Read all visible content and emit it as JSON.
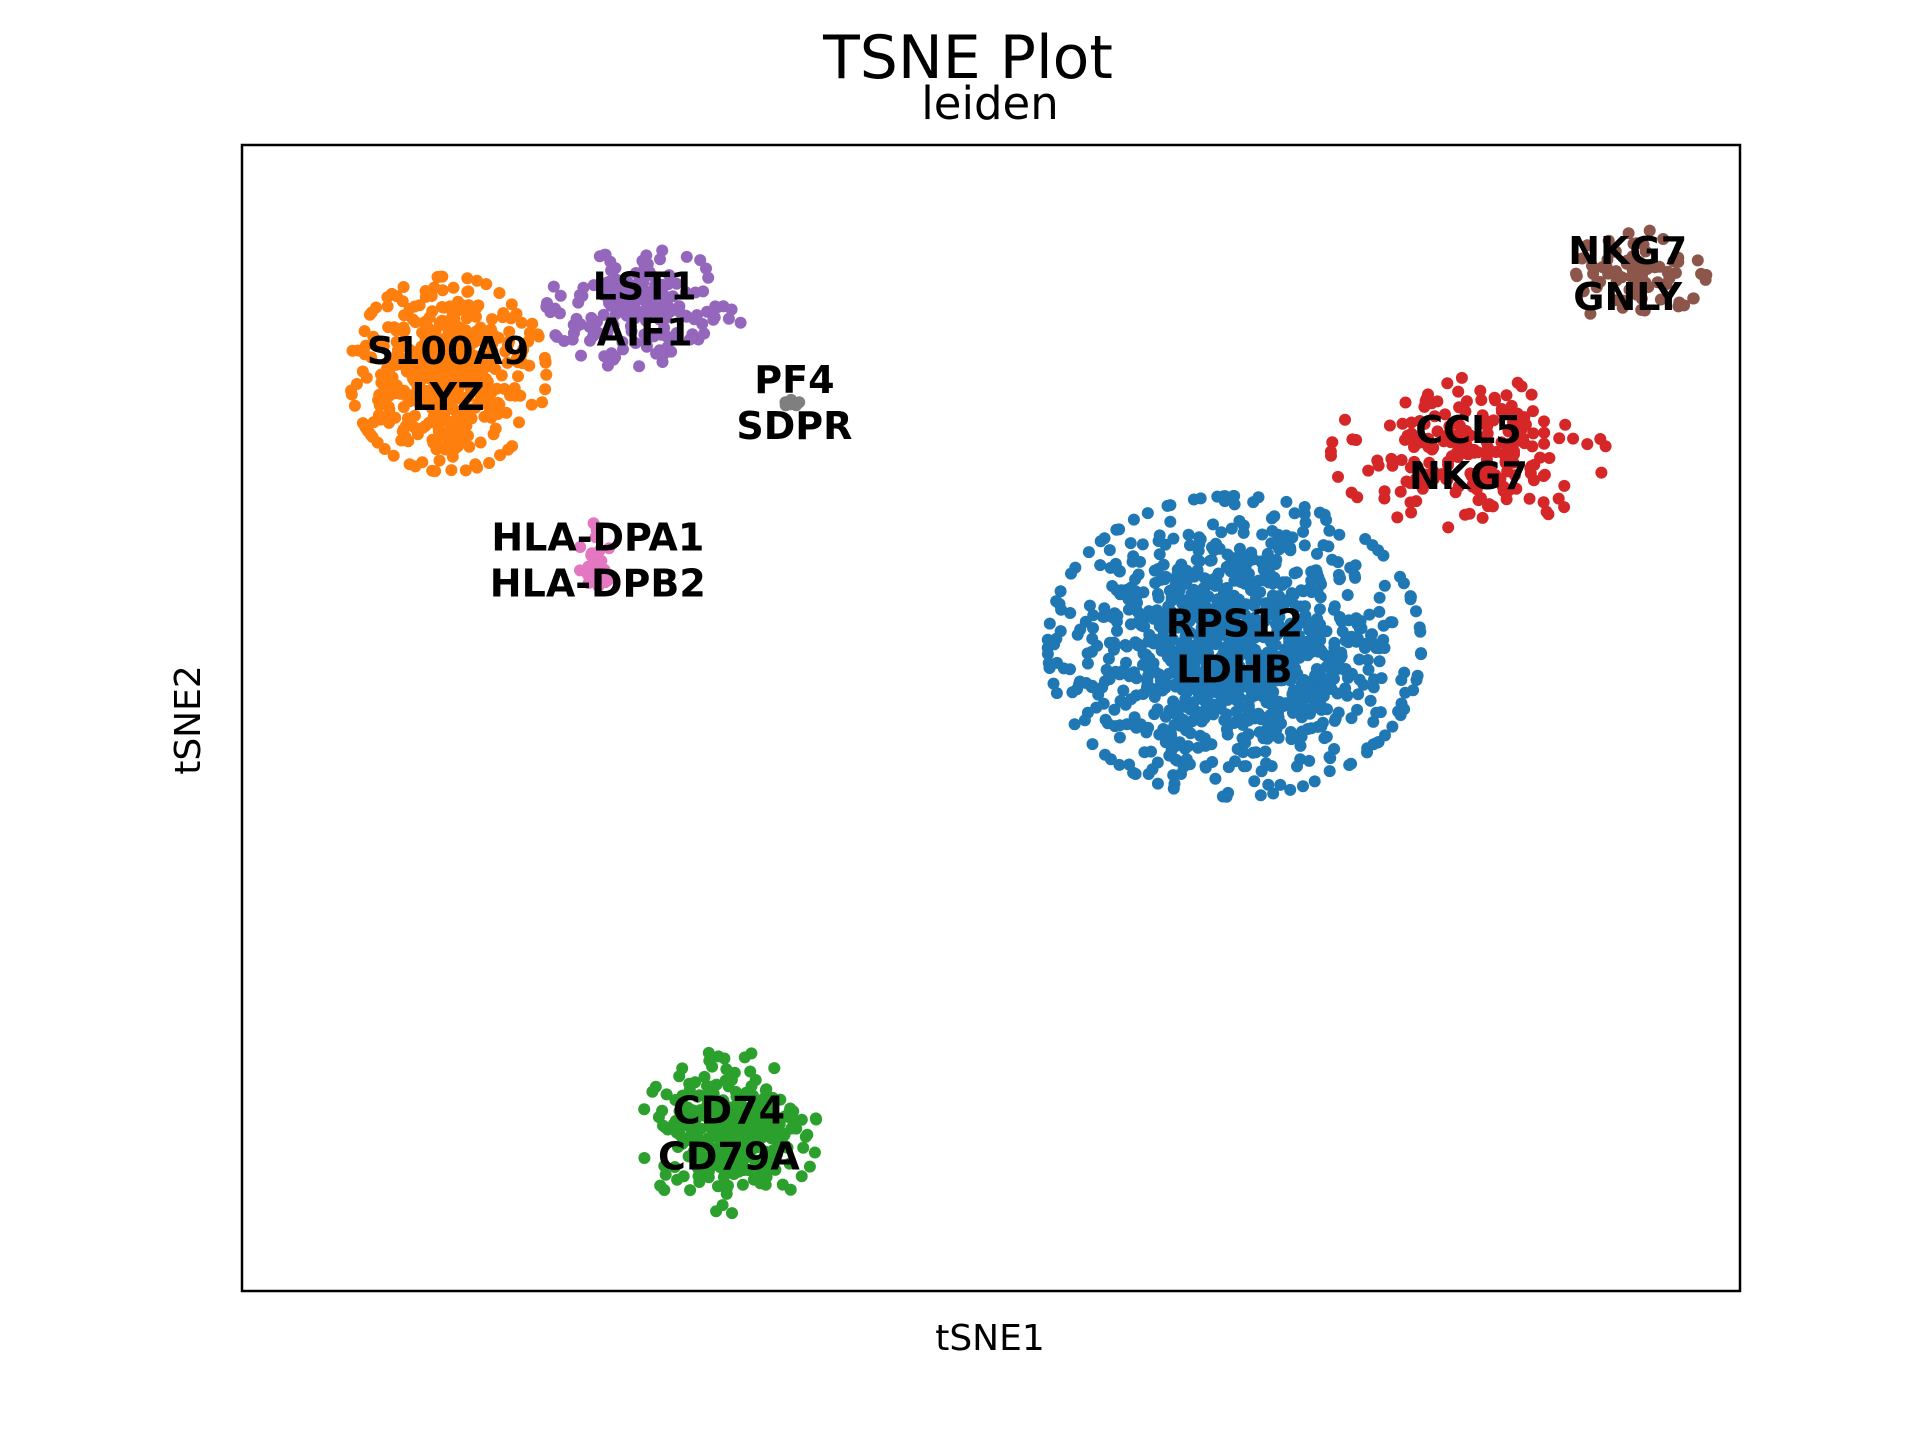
{
  "chart_data": {
    "type": "scatter",
    "title": "TSNE Plot",
    "subtitle": "leiden",
    "xlabel": "tSNE1",
    "ylabel": "tSNE2",
    "xlim": [
      -40,
      40
    ],
    "ylim": [
      -40,
      40
    ],
    "grid": false,
    "legend": "on data",
    "clusters": [
      {
        "name": "0",
        "color": "#1f77b4",
        "center": [
          13,
          5
        ],
        "spread": [
          9.5,
          10
        ],
        "count": 1150,
        "labels": [
          "RPS12",
          "LDHB"
        ]
      },
      {
        "name": "1",
        "color": "#ff7f0e",
        "center": [
          -29,
          24
        ],
        "spread": [
          5,
          6.5
        ],
        "count": 500,
        "labels": [
          "S100A9",
          "LYZ"
        ]
      },
      {
        "name": "2",
        "color": "#2ca02c",
        "center": [
          -14,
          -29
        ],
        "spread": [
          4.5,
          5.5
        ],
        "count": 330,
        "labels": [
          "CD74",
          "CD79A"
        ]
      },
      {
        "name": "3",
        "color": "#d62728",
        "center": [
          25.5,
          18.5
        ],
        "spread": [
          7,
          5
        ],
        "count": 210,
        "labels": [
          "CCL5",
          "NKG7"
        ]
      },
      {
        "name": "4",
        "color": "#9467bd",
        "center": [
          -18.5,
          28.5
        ],
        "spread": [
          5,
          4
        ],
        "count": 185,
        "labels": [
          "LST1",
          "AIF1"
        ]
      },
      {
        "name": "5",
        "color": "#8c564b",
        "center": [
          34,
          31
        ],
        "spread": [
          4,
          3
        ],
        "count": 80,
        "labels": [
          "NKG7",
          "GNLY"
        ]
      },
      {
        "name": "6",
        "color": "#e377c2",
        "center": [
          -21,
          11
        ],
        "spread": [
          1,
          3
        ],
        "count": 26,
        "labels": [
          "HLA-DPA1",
          "HLA-DPB2"
        ]
      },
      {
        "name": "7",
        "color": "#7f7f7f",
        "center": [
          -10.5,
          22
        ],
        "spread": [
          0.7,
          0.2
        ],
        "count": 8,
        "labels": [
          "PF4",
          "SDPR"
        ]
      }
    ]
  }
}
